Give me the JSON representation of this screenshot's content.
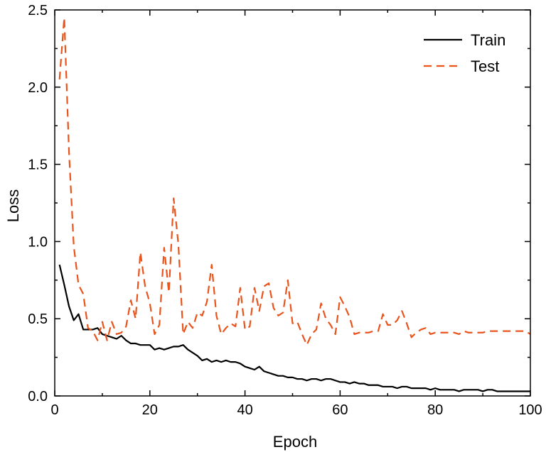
{
  "chart_data": {
    "type": "line",
    "title": "",
    "xlabel": "Epoch",
    "ylabel": "Loss",
    "xlim": [
      0,
      100
    ],
    "ylim": [
      0,
      2.5
    ],
    "x_ticks": [
      0,
      20,
      40,
      60,
      80,
      100
    ],
    "y_ticks": [
      0.0,
      0.5,
      1.0,
      1.5,
      2.0,
      2.5
    ],
    "x_tick_labels": [
      "0",
      "20",
      "40",
      "60",
      "80",
      "100"
    ],
    "y_tick_labels": [
      "0.0",
      "0.5",
      "1.0",
      "1.5",
      "2.0",
      "2.5"
    ],
    "grid": false,
    "legend_position": "top-right",
    "series": [
      {
        "name": "Train",
        "color": "#000000",
        "dash": "solid",
        "x": [
          1,
          2,
          3,
          4,
          5,
          6,
          7,
          8,
          9,
          10,
          11,
          12,
          13,
          14,
          15,
          16,
          17,
          18,
          19,
          20,
          21,
          22,
          23,
          24,
          25,
          26,
          27,
          28,
          29,
          30,
          31,
          32,
          33,
          34,
          35,
          36,
          37,
          38,
          39,
          40,
          41,
          42,
          43,
          44,
          45,
          46,
          47,
          48,
          49,
          50,
          51,
          52,
          53,
          54,
          55,
          56,
          57,
          58,
          59,
          60,
          61,
          62,
          63,
          64,
          65,
          66,
          67,
          68,
          69,
          70,
          71,
          72,
          73,
          74,
          75,
          76,
          77,
          78,
          79,
          80,
          81,
          82,
          83,
          84,
          85,
          86,
          87,
          88,
          89,
          90,
          91,
          92,
          93,
          94,
          95,
          96,
          97,
          98,
          99,
          100
        ],
        "y": [
          0.85,
          0.72,
          0.58,
          0.49,
          0.53,
          0.43,
          0.43,
          0.43,
          0.44,
          0.4,
          0.39,
          0.38,
          0.37,
          0.39,
          0.36,
          0.34,
          0.34,
          0.33,
          0.33,
          0.33,
          0.3,
          0.31,
          0.3,
          0.31,
          0.32,
          0.32,
          0.33,
          0.3,
          0.28,
          0.26,
          0.23,
          0.24,
          0.22,
          0.23,
          0.22,
          0.23,
          0.22,
          0.22,
          0.21,
          0.19,
          0.18,
          0.17,
          0.19,
          0.16,
          0.15,
          0.14,
          0.13,
          0.13,
          0.12,
          0.12,
          0.11,
          0.11,
          0.1,
          0.11,
          0.11,
          0.1,
          0.11,
          0.11,
          0.1,
          0.09,
          0.09,
          0.08,
          0.09,
          0.08,
          0.08,
          0.07,
          0.07,
          0.07,
          0.06,
          0.06,
          0.06,
          0.05,
          0.06,
          0.06,
          0.05,
          0.05,
          0.05,
          0.05,
          0.04,
          0.05,
          0.04,
          0.04,
          0.04,
          0.04,
          0.03,
          0.04,
          0.04,
          0.04,
          0.04,
          0.03,
          0.04,
          0.04,
          0.03,
          0.03,
          0.03,
          0.03,
          0.03,
          0.03,
          0.03,
          0.03
        ]
      },
      {
        "name": "Test",
        "color": "#E8541C",
        "dash": "dashed",
        "x": [
          1,
          2,
          3,
          4,
          5,
          6,
          7,
          8,
          9,
          10,
          11,
          12,
          13,
          14,
          15,
          16,
          17,
          18,
          19,
          20,
          21,
          22,
          23,
          24,
          25,
          26,
          27,
          28,
          29,
          30,
          31,
          32,
          33,
          34,
          35,
          36,
          37,
          38,
          39,
          40,
          41,
          42,
          43,
          44,
          45,
          46,
          47,
          48,
          49,
          50,
          51,
          52,
          53,
          54,
          55,
          56,
          57,
          58,
          59,
          60,
          61,
          62,
          63,
          64,
          65,
          66,
          67,
          68,
          69,
          70,
          71,
          72,
          73,
          74,
          75,
          76,
          77,
          78,
          79,
          80,
          81,
          82,
          83,
          84,
          85,
          86,
          87,
          88,
          89,
          90,
          91,
          92,
          93,
          94,
          95,
          96,
          97,
          98,
          99,
          100
        ],
        "y": [
          2.05,
          2.45,
          1.58,
          0.97,
          0.72,
          0.66,
          0.44,
          0.42,
          0.36,
          0.48,
          0.36,
          0.48,
          0.4,
          0.41,
          0.45,
          0.62,
          0.5,
          0.93,
          0.71,
          0.6,
          0.4,
          0.46,
          0.96,
          0.67,
          1.28,
          0.98,
          0.4,
          0.48,
          0.44,
          0.54,
          0.52,
          0.61,
          0.85,
          0.52,
          0.4,
          0.44,
          0.47,
          0.45,
          0.7,
          0.43,
          0.45,
          0.7,
          0.55,
          0.71,
          0.73,
          0.57,
          0.52,
          0.54,
          0.75,
          0.47,
          0.48,
          0.4,
          0.33,
          0.4,
          0.43,
          0.6,
          0.5,
          0.46,
          0.4,
          0.64,
          0.58,
          0.51,
          0.4,
          0.41,
          0.41,
          0.41,
          0.42,
          0.42,
          0.53,
          0.46,
          0.46,
          0.49,
          0.55,
          0.47,
          0.38,
          0.41,
          0.43,
          0.44,
          0.4,
          0.41,
          0.41,
          0.41,
          0.41,
          0.41,
          0.4,
          0.42,
          0.41,
          0.41,
          0.41,
          0.41,
          0.42,
          0.42,
          0.42,
          0.42,
          0.42,
          0.42,
          0.42,
          0.42,
          0.42,
          0.4
        ]
      }
    ]
  }
}
